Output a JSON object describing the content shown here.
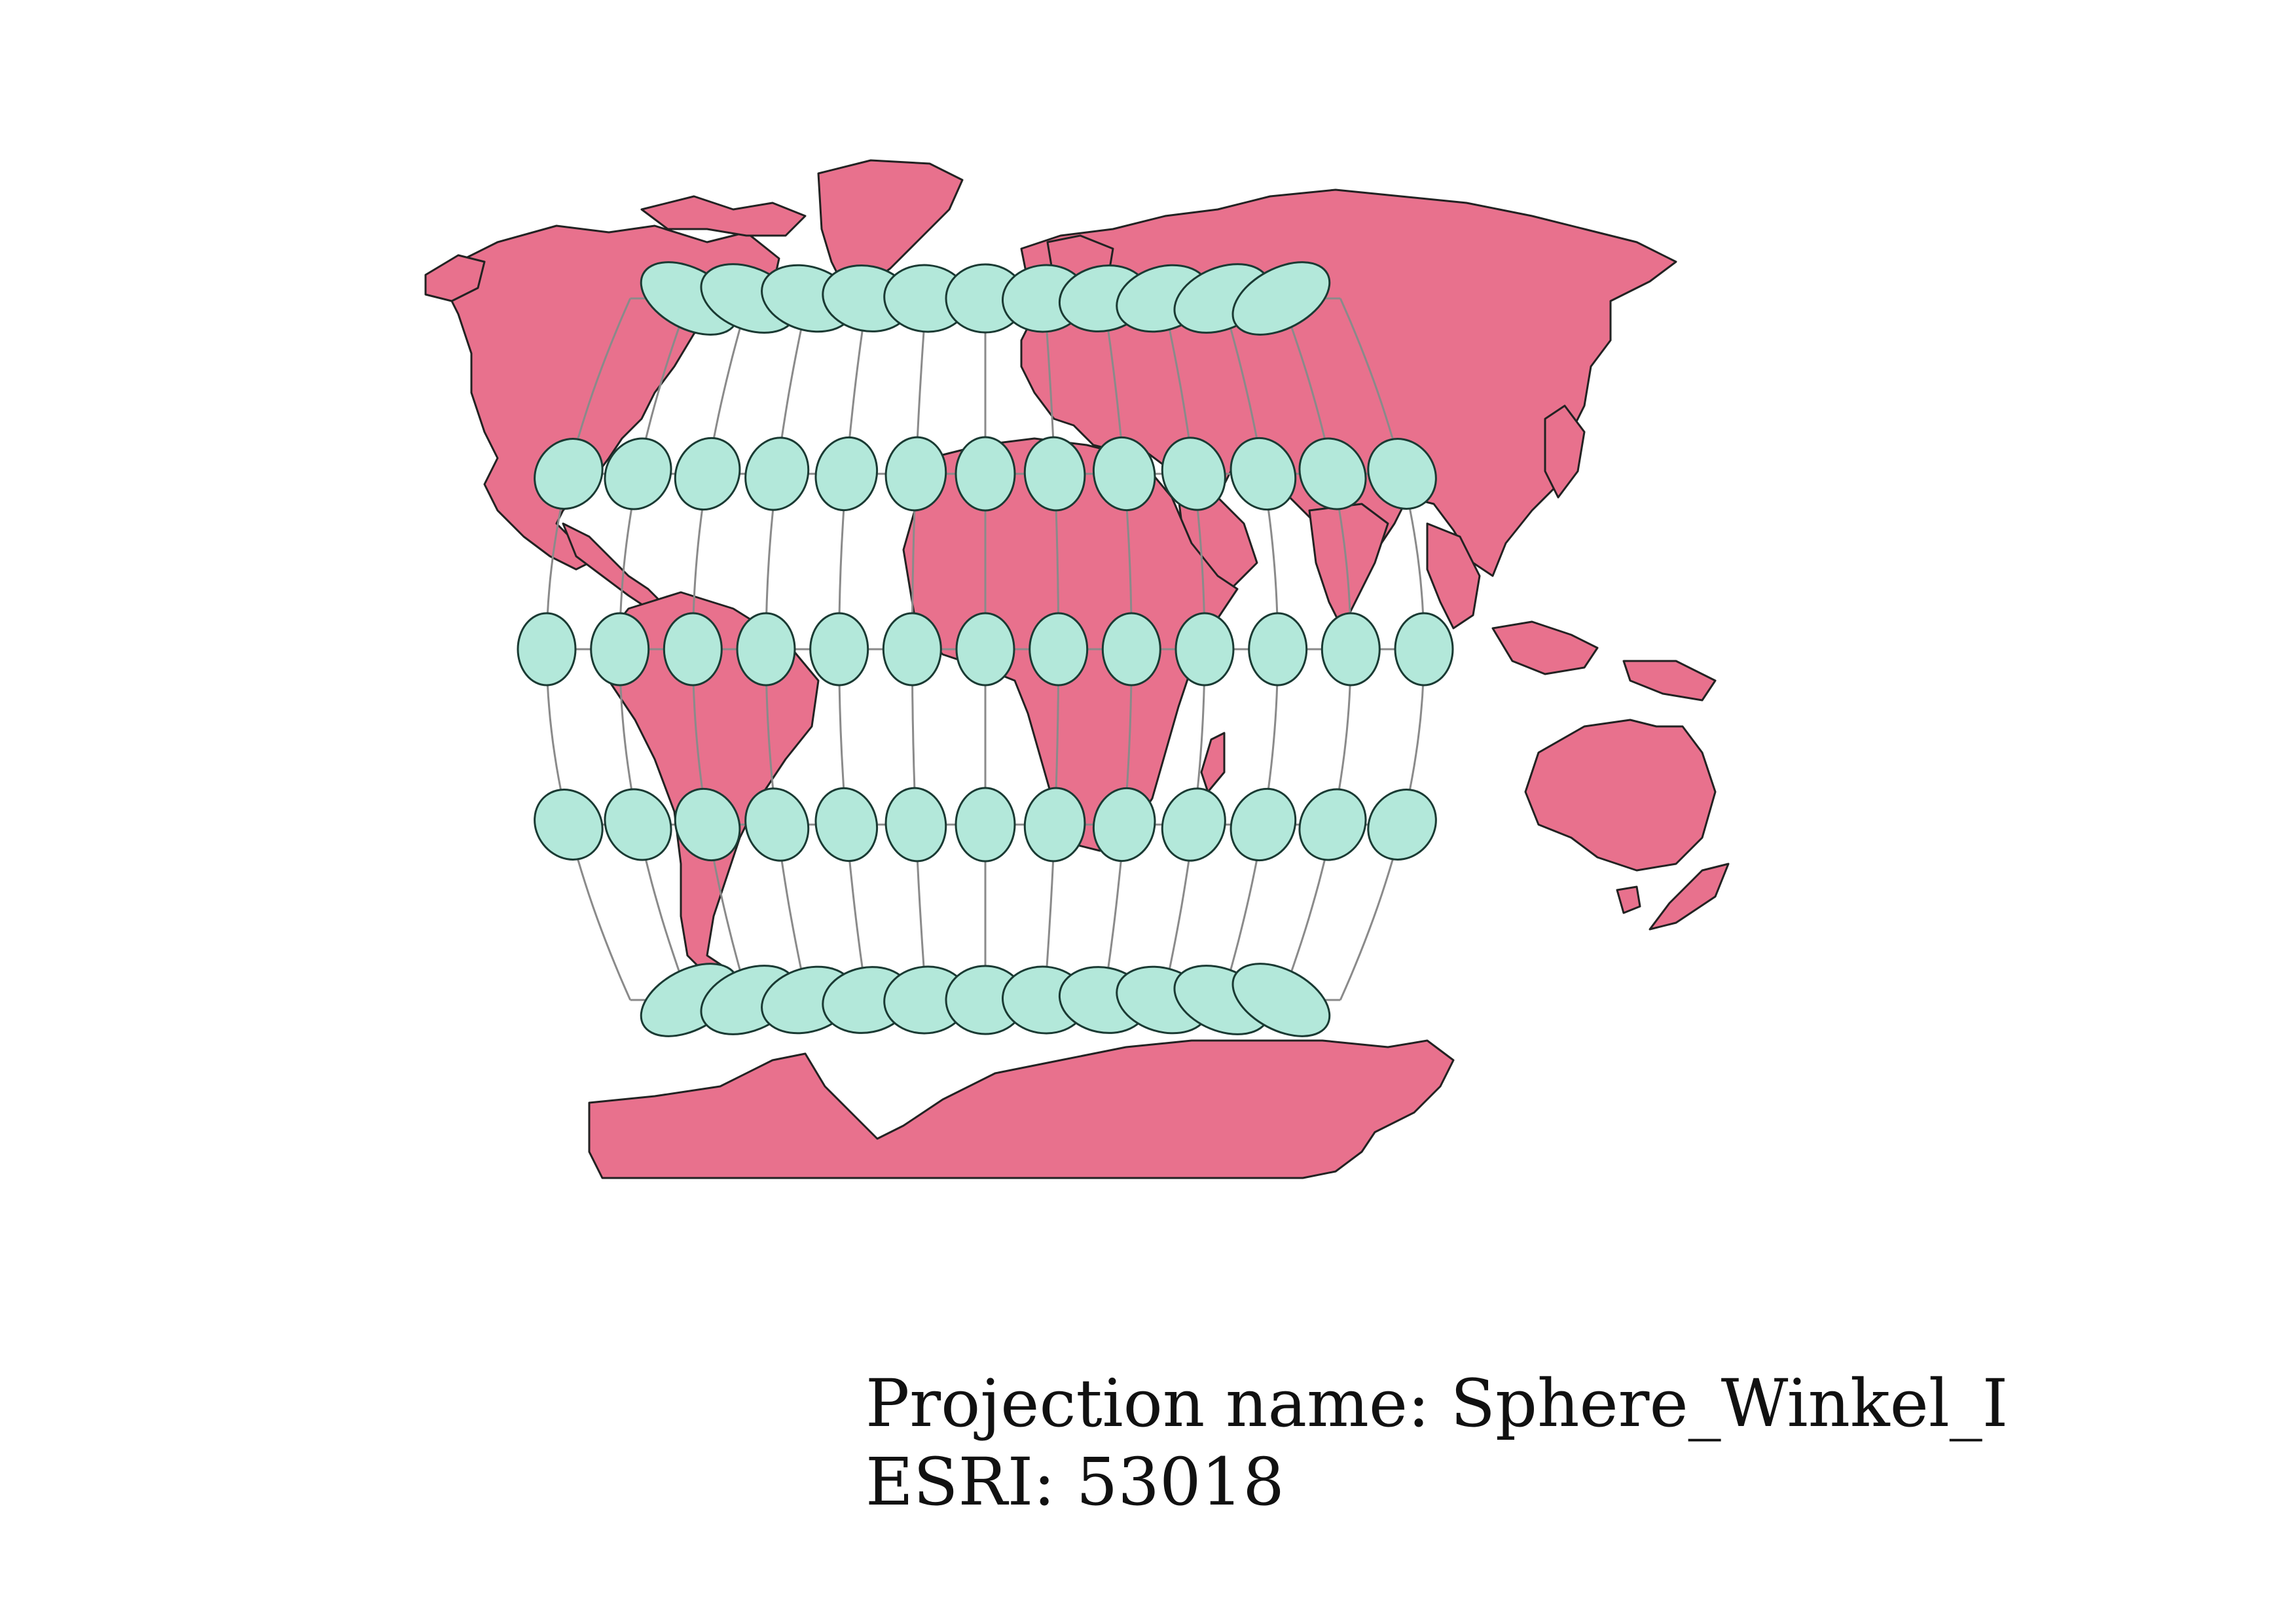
{
  "caption": {
    "projection_line": "Projection name: Sphere_Winkel_I",
    "esri_line": "ESRI: 53018"
  },
  "map": {
    "projection": "Sphere_Winkel_I",
    "esri_code": "53018",
    "land_color": "#e8718d",
    "land_stroke": "#222222",
    "ellipse_fill": "#b3e8da",
    "ellipse_stroke": "#1a3a33",
    "graticule_color": "#8a8a8a",
    "graticule_longitudes_deg": [
      -180,
      -150,
      -120,
      -90,
      -60,
      -30,
      0,
      30,
      60,
      90,
      120,
      150,
      180
    ],
    "graticule_latitudes_deg": [
      -60,
      -30,
      0,
      30,
      60
    ],
    "tissot_indicatrix": "ellipses at each graticule intersection"
  }
}
